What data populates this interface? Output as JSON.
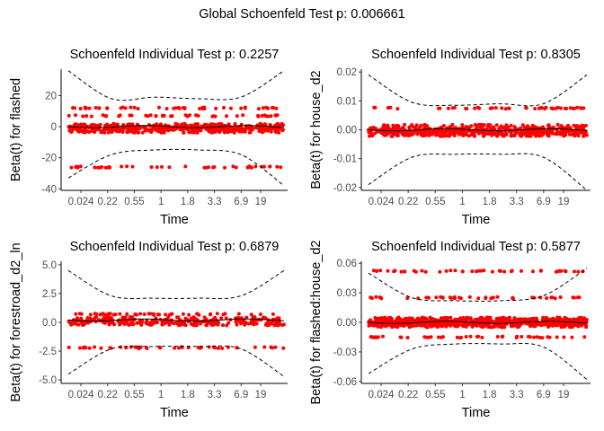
{
  "title": "Global Schoenfeld Test p: 0.006661",
  "colors": {
    "points": "#ff0000",
    "lines": "#000000",
    "background": "#ffffff"
  },
  "chart_data": [
    {
      "type": "scatter",
      "title": "Schoenfeld Individual Test p: 0.2257",
      "xlabel": "Time",
      "ylabel": "Beta(t) for flashed",
      "x_ticks": [
        "0.024",
        "0.22",
        "0.55",
        "1",
        "1.8",
        "3.3",
        "6.9",
        "19"
      ],
      "y_ticks": [
        "20",
        "0",
        "-20",
        "-40"
      ],
      "y_tick_values": [
        20,
        0,
        -20,
        -40
      ],
      "ylim": [
        -41,
        37
      ],
      "fit_line": 0,
      "residual_bands": [
        -2,
        0,
        7,
        12,
        -26
      ],
      "band_upper": [
        36,
        18,
        19,
        18,
        19,
        36
      ],
      "band_lower": [
        -33,
        -18,
        -15,
        -15,
        -18,
        -38
      ],
      "grid": false
    },
    {
      "type": "scatter",
      "title": "Schoenfeld Individual Test p: 0.8305",
      "xlabel": "Time",
      "ylabel": "Beta(t) for house_d2",
      "x_ticks": [
        "0.024",
        "0.22",
        "0.55",
        "1",
        "1.8",
        "3.3",
        "6.9",
        "19"
      ],
      "y_ticks": [
        "0.02",
        "0.01",
        "0.00",
        "-0.01",
        "-0.02"
      ],
      "y_tick_values": [
        0.02,
        0.01,
        0.0,
        -0.01,
        -0.02
      ],
      "ylim": [
        -0.021,
        0.021
      ],
      "fit_line": 0,
      "residual_bands": [
        -0.0012,
        0.0,
        0.0015,
        0.0075
      ],
      "band_upper": [
        0.019,
        0.0095,
        0.0085,
        0.009,
        0.009,
        0.019
      ],
      "band_lower": [
        -0.019,
        -0.0095,
        -0.0085,
        -0.0085,
        -0.0095,
        -0.021
      ],
      "grid": false
    },
    {
      "type": "scatter",
      "title": "Schoenfeld Individual Test p: 0.6879",
      "xlabel": "Time",
      "ylabel": "Beta(t) for forestroad_d2_ln",
      "x_ticks": [
        "0.024",
        "0.22",
        "0.55",
        "1",
        "1.8",
        "3.3",
        "6.9",
        "19"
      ],
      "y_ticks": [
        "5.0",
        "2.5",
        "0.0",
        "-2.5",
        "-5.0"
      ],
      "y_tick_values": [
        5.0,
        2.5,
        0.0,
        -2.5,
        -5.0
      ],
      "ylim": [
        -5.3,
        5.3
      ],
      "fit_line": 0.2,
      "residual_bands": [
        0.0,
        0.4,
        0.7,
        -2.2
      ],
      "band_upper": [
        4.5,
        2.3,
        2.1,
        2.1,
        2.3,
        4.5
      ],
      "band_lower": [
        -4.5,
        -2.3,
        -2.1,
        -2.1,
        -2.3,
        -4.7
      ],
      "grid": false
    },
    {
      "type": "scatter",
      "title": "Schoenfeld Individual Test p: 0.5877",
      "xlabel": "Time",
      "ylabel": "Beta(t) for flashed:house_d2",
      "x_ticks": [
        "0.024",
        "0.22",
        "0.55",
        "1",
        "1.8",
        "3.3",
        "6.9",
        "19"
      ],
      "y_ticks": [
        "0.06",
        "0.03",
        "0.00",
        "-0.03",
        "-0.06"
      ],
      "y_tick_values": [
        0.06,
        0.03,
        0.0,
        -0.03,
        -0.06
      ],
      "ylim": [
        -0.062,
        0.062
      ],
      "fit_line": 0,
      "residual_bands": [
        -0.002,
        0.0,
        0.002,
        0.025,
        0.052,
        -0.015
      ],
      "band_upper": [
        0.05,
        0.025,
        0.022,
        0.022,
        0.027,
        0.055
      ],
      "band_lower": [
        -0.052,
        -0.027,
        -0.022,
        -0.022,
        -0.025,
        -0.058
      ],
      "grid": false
    }
  ]
}
